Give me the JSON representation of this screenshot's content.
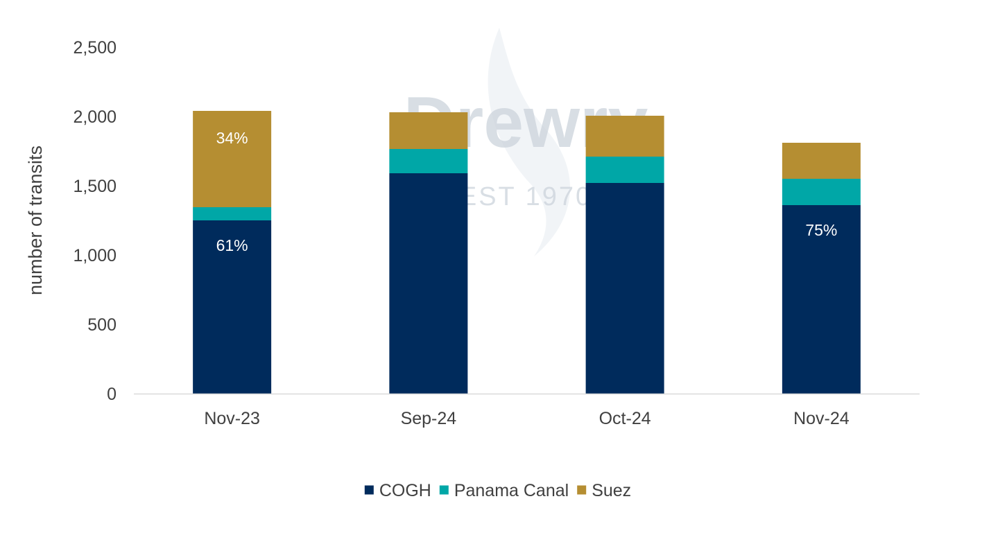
{
  "watermark": {
    "brand": "Drewry",
    "est": "EST 1970"
  },
  "chart_data": {
    "type": "bar",
    "stacked": true,
    "categories": [
      "Nov-23",
      "Sep-24",
      "Oct-24",
      "Nov-24"
    ],
    "series": [
      {
        "name": "COGH",
        "color": "#002b5c",
        "values": [
          1250,
          1590,
          1520,
          1360
        ]
      },
      {
        "name": "Panama Canal",
        "color": "#00a7a7",
        "values": [
          95,
          175,
          190,
          190
        ]
      },
      {
        "name": "Suez",
        "color": "#b58e32",
        "values": [
          695,
          265,
          295,
          260
        ]
      }
    ],
    "data_labels": [
      {
        "category": "Nov-23",
        "series": "Suez",
        "text": "34%"
      },
      {
        "category": "Nov-23",
        "series": "COGH",
        "text": "61%"
      },
      {
        "category": "Nov-24",
        "series": "COGH",
        "text": "75%"
      }
    ],
    "ylabel": "number of transits",
    "xlabel": "",
    "ylim": [
      0,
      2500
    ],
    "yticks": [
      0,
      500,
      1000,
      1500,
      2000,
      2500
    ],
    "ytick_labels": [
      "0",
      "500",
      "1,000",
      "1,500",
      "2,000",
      "2,500"
    ],
    "grid": false,
    "legend_position": "bottom"
  }
}
